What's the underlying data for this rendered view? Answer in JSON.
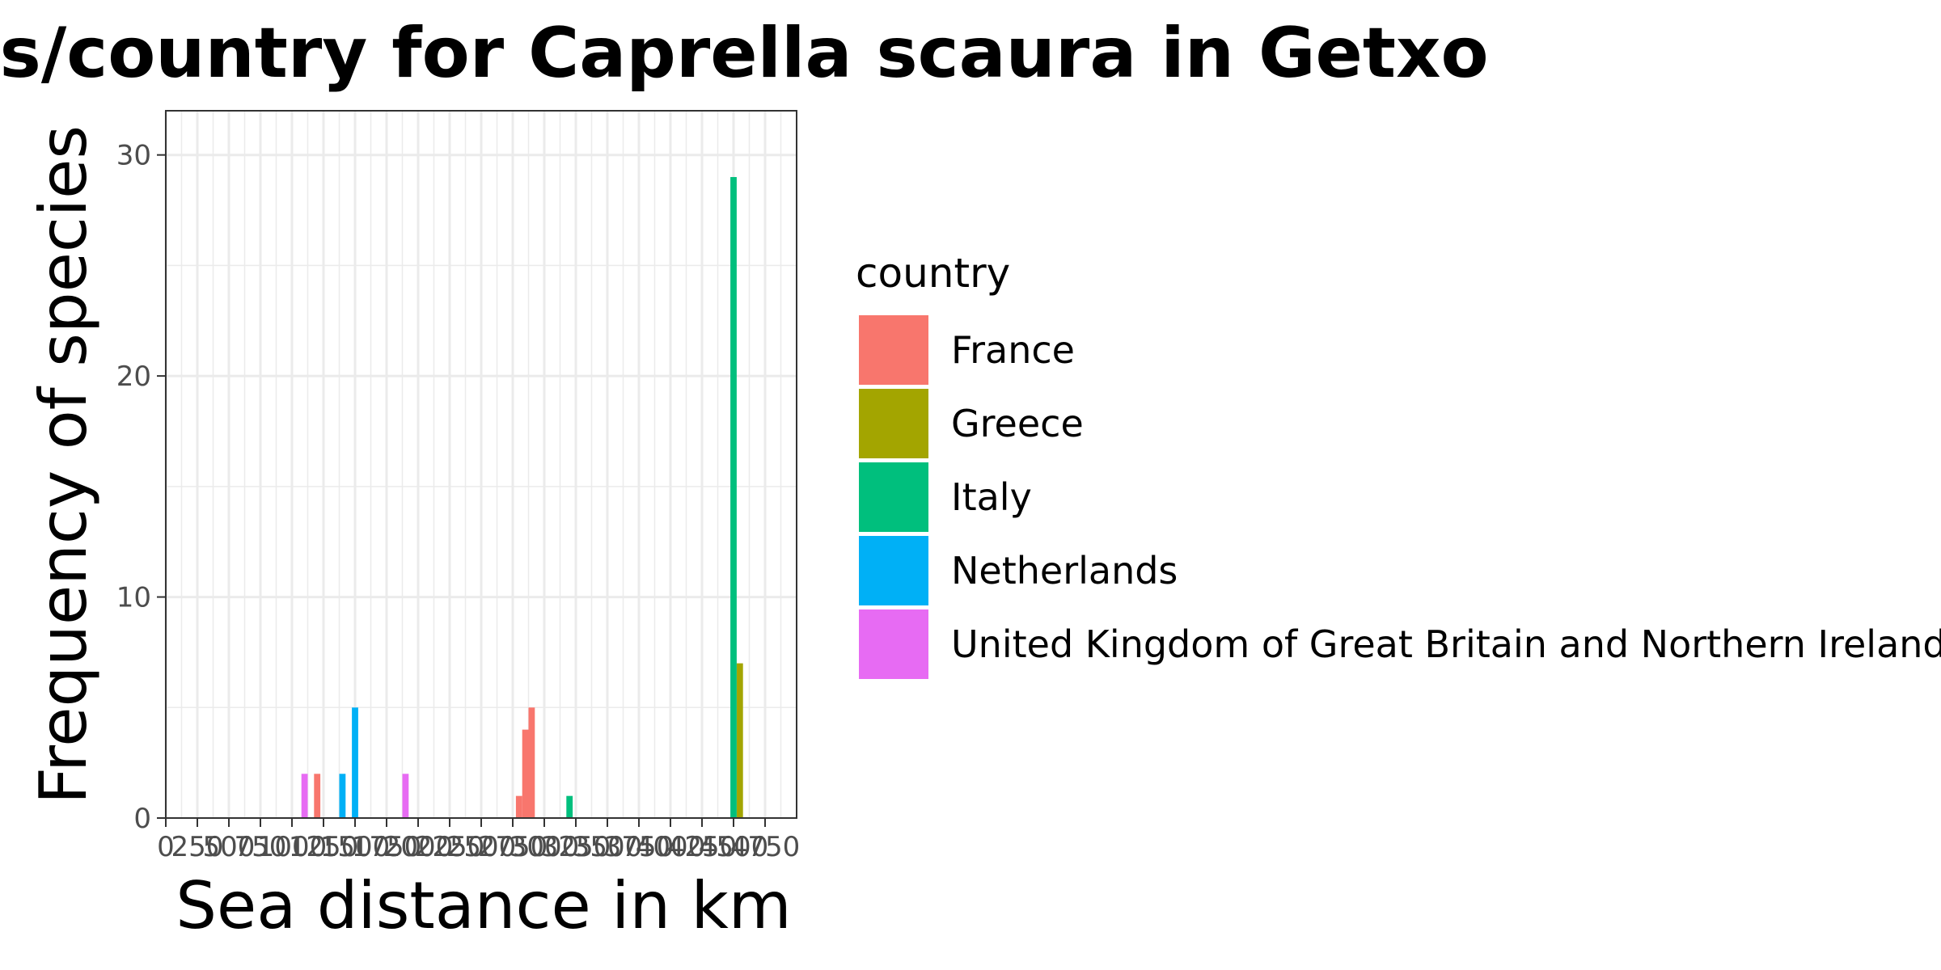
{
  "chart_data": {
    "type": "bar",
    "title": "Sea distances/country for Caprella scaura in Getxo",
    "xlabel": "Sea distance in km",
    "ylabel": "Frequency of species",
    "xlim": [
      0,
      2000
    ],
    "ylim": [
      0,
      32
    ],
    "x_ticks": [
      0,
      100,
      200,
      300,
      400,
      500,
      600,
      700,
      800,
      900,
      1000,
      1100,
      1200,
      1300,
      1400,
      1500,
      1600,
      1700,
      1800,
      1900
    ],
    "x_tick_labels": [
      "0",
      "250",
      "500",
      "750",
      "1000",
      "1250",
      "1500",
      "1750",
      "2000",
      "2250",
      "2500",
      "2750",
      "3000",
      "3250",
      "3500",
      "3750",
      "4000",
      "4250",
      "4500",
      "4750"
    ],
    "y_ticks": [
      0,
      10,
      20,
      30
    ],
    "grid": true,
    "legend_title": "country",
    "legend_position": "right",
    "bin_width": 20,
    "series": [
      {
        "name": "France",
        "color": "#F8766D",
        "bars": [
          {
            "x": 480,
            "y": 2
          },
          {
            "x": 1120,
            "y": 1
          },
          {
            "x": 1140,
            "y": 4
          },
          {
            "x": 1160,
            "y": 5
          }
        ]
      },
      {
        "name": "Greece",
        "color": "#A3A500",
        "bars": [
          {
            "x": 1820,
            "y": 7
          }
        ]
      },
      {
        "name": "Italy",
        "color": "#00BF7D",
        "bars": [
          {
            "x": 1280,
            "y": 1
          },
          {
            "x": 1800,
            "y": 29
          }
        ]
      },
      {
        "name": "Netherlands",
        "color": "#00B0F6",
        "bars": [
          {
            "x": 560,
            "y": 2
          },
          {
            "x": 600,
            "y": 5
          }
        ]
      },
      {
        "name": "United Kingdom of Great Britain and Northern Ireland",
        "color": "#E76BF3",
        "bars": [
          {
            "x": 440,
            "y": 2
          },
          {
            "x": 760,
            "y": 2
          }
        ]
      }
    ]
  }
}
